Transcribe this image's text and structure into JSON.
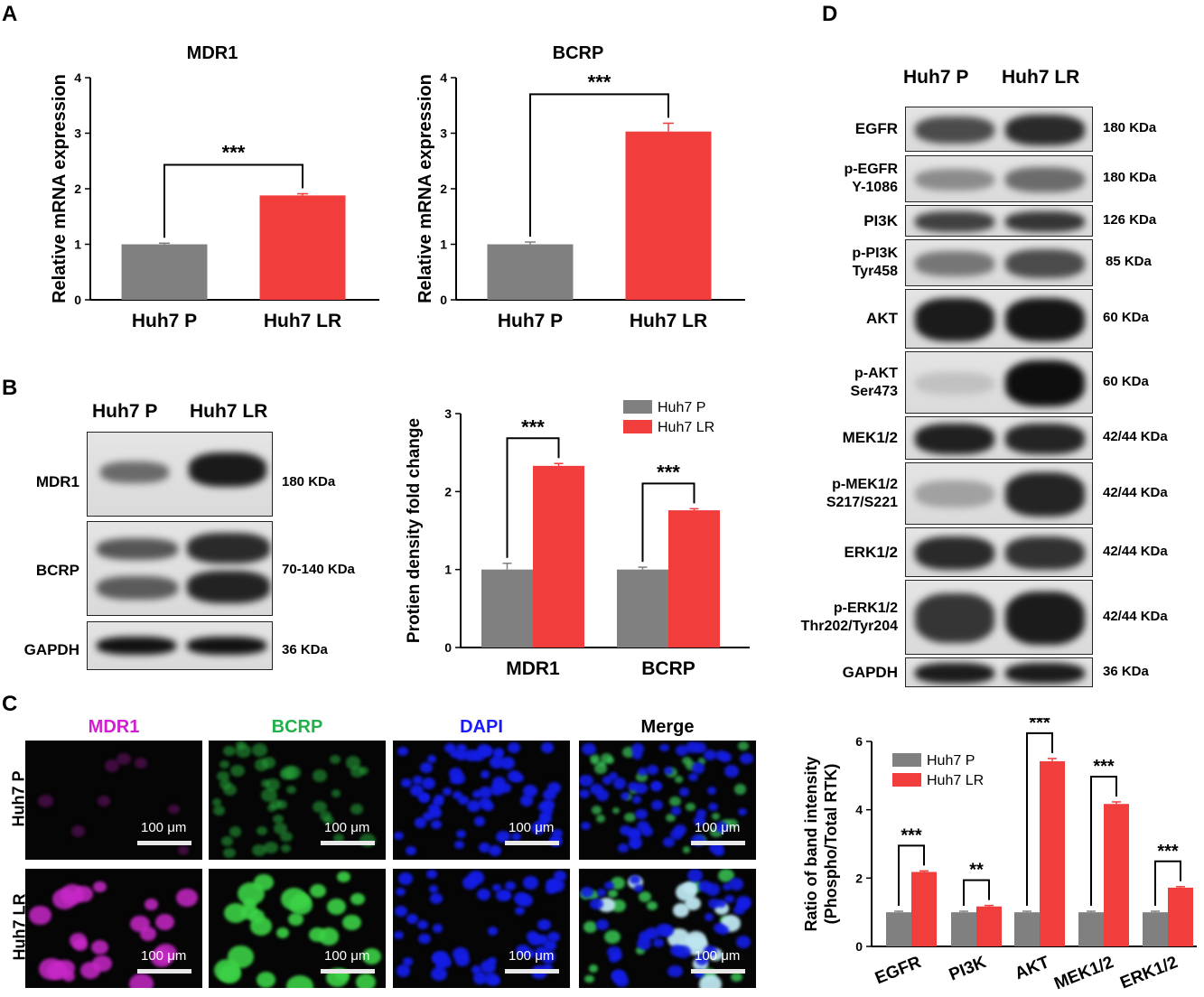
{
  "panels": {
    "a": "A",
    "b": "B",
    "c": "C",
    "d": "D"
  },
  "colors": {
    "huh7_p": "#808080",
    "huh7_lr": "#f23d3d"
  },
  "chart_data": [
    {
      "id": "a1",
      "type": "bar",
      "title": "MDR1",
      "ylabel": "Relative mRNA expression",
      "ylim": [
        0,
        4
      ],
      "yticks": [
        0,
        1,
        2,
        3,
        4
      ],
      "categories": [
        "Huh7 P",
        "Huh7 LR"
      ],
      "values": [
        1.0,
        1.88
      ],
      "errors": [
        0.02,
        0.03
      ],
      "significance": [
        {
          "from": 0,
          "to": 1,
          "label": "***"
        }
      ]
    },
    {
      "id": "a2",
      "type": "bar",
      "title": "BCRP",
      "ylabel": "Relative mRNA expression",
      "ylim": [
        0,
        4
      ],
      "yticks": [
        0,
        1,
        2,
        3,
        4
      ],
      "categories": [
        "Huh7 P",
        "Huh7 LR"
      ],
      "values": [
        1.0,
        3.03
      ],
      "errors": [
        0.04,
        0.15
      ],
      "significance": [
        {
          "from": 0,
          "to": 1,
          "label": "***"
        }
      ]
    },
    {
      "id": "b",
      "type": "bar",
      "title": "",
      "ylabel": "Protien density fold change",
      "ylim": [
        0,
        3
      ],
      "yticks": [
        0,
        1,
        2,
        3
      ],
      "categories": [
        "MDR1",
        "BCRP"
      ],
      "series": [
        {
          "name": "Huh7 P",
          "values": [
            1.0,
            1.0
          ],
          "errors": [
            0.08,
            0.03
          ]
        },
        {
          "name": "Huh7 LR",
          "values": [
            2.33,
            1.76
          ],
          "errors": [
            0.03,
            0.02
          ]
        }
      ],
      "legend": "top-right",
      "significance": [
        {
          "category": 0,
          "label": "***"
        },
        {
          "category": 1,
          "label": "***"
        }
      ]
    },
    {
      "id": "d",
      "type": "bar",
      "title": "",
      "ylabel": "Ratio of band intensity\n(Phospho/Total RTK)",
      "ylim": [
        0,
        6
      ],
      "yticks": [
        0,
        2,
        4,
        6
      ],
      "categories": [
        "EGFR",
        "PI3K",
        "AKT",
        "MEK1/2",
        "ERK1/2"
      ],
      "series": [
        {
          "name": "Huh7 P",
          "values": [
            1.0,
            1.0,
            1.0,
            1.0,
            1.0
          ],
          "errors": [
            0.03,
            0.03,
            0.03,
            0.03,
            0.03
          ]
        },
        {
          "name": "Huh7 LR",
          "values": [
            2.18,
            1.17,
            5.42,
            4.17,
            1.72
          ],
          "errors": [
            0.03,
            0.03,
            0.08,
            0.06,
            0.03
          ]
        }
      ],
      "legend": "top-left",
      "significance": [
        {
          "category": 0,
          "label": "***"
        },
        {
          "category": 1,
          "label": "**"
        },
        {
          "category": 2,
          "label": "***"
        },
        {
          "category": 3,
          "label": "***"
        },
        {
          "category": 4,
          "label": "***"
        }
      ]
    }
  ],
  "blot_b": {
    "lanes": [
      "Huh7 P",
      "Huh7 LR"
    ],
    "rows": [
      {
        "label": "MDR1",
        "kda": "180 KDa"
      },
      {
        "label": "BCRP",
        "kda": "70-140 KDa"
      },
      {
        "label": "GAPDH",
        "kda": "36 KDa"
      }
    ]
  },
  "blot_d": {
    "lanes": [
      "Huh7 P",
      "Huh7 LR"
    ],
    "rows": [
      {
        "label": "EGFR",
        "kda": "180 KDa"
      },
      {
        "label": "p-EGFR\nY-1086",
        "kda": "180 KDa"
      },
      {
        "label": "PI3K",
        "kda": "126 KDa"
      },
      {
        "label": "p-PI3K\nTyr458",
        "kda": "85 KDa"
      },
      {
        "label": "AKT",
        "kda": "60 KDa"
      },
      {
        "label": "p-AKT\nSer473",
        "kda": "60 KDa"
      },
      {
        "label": "MEK1/2",
        "kda": "42/44 KDa"
      },
      {
        "label": "p-MEK1/2\nS217/S221",
        "kda": "42/44 KDa"
      },
      {
        "label": "ERK1/2",
        "kda": "42/44 KDa"
      },
      {
        "label": "p-ERK1/2\nThr202/Tyr204",
        "kda": "42/44 KDa"
      },
      {
        "label": "GAPDH",
        "kda": "36 KDa"
      }
    ]
  },
  "microscopy": {
    "columns": [
      {
        "label": "MDR1",
        "color": "#d020d0"
      },
      {
        "label": "BCRP",
        "color": "#22b04a"
      },
      {
        "label": "DAPI",
        "color": "#1a1aff"
      },
      {
        "label": "Merge",
        "color": "#000000"
      }
    ],
    "rows": [
      "Huh7 P",
      "Huh7 LR"
    ],
    "scale_bar": "100 μm"
  }
}
